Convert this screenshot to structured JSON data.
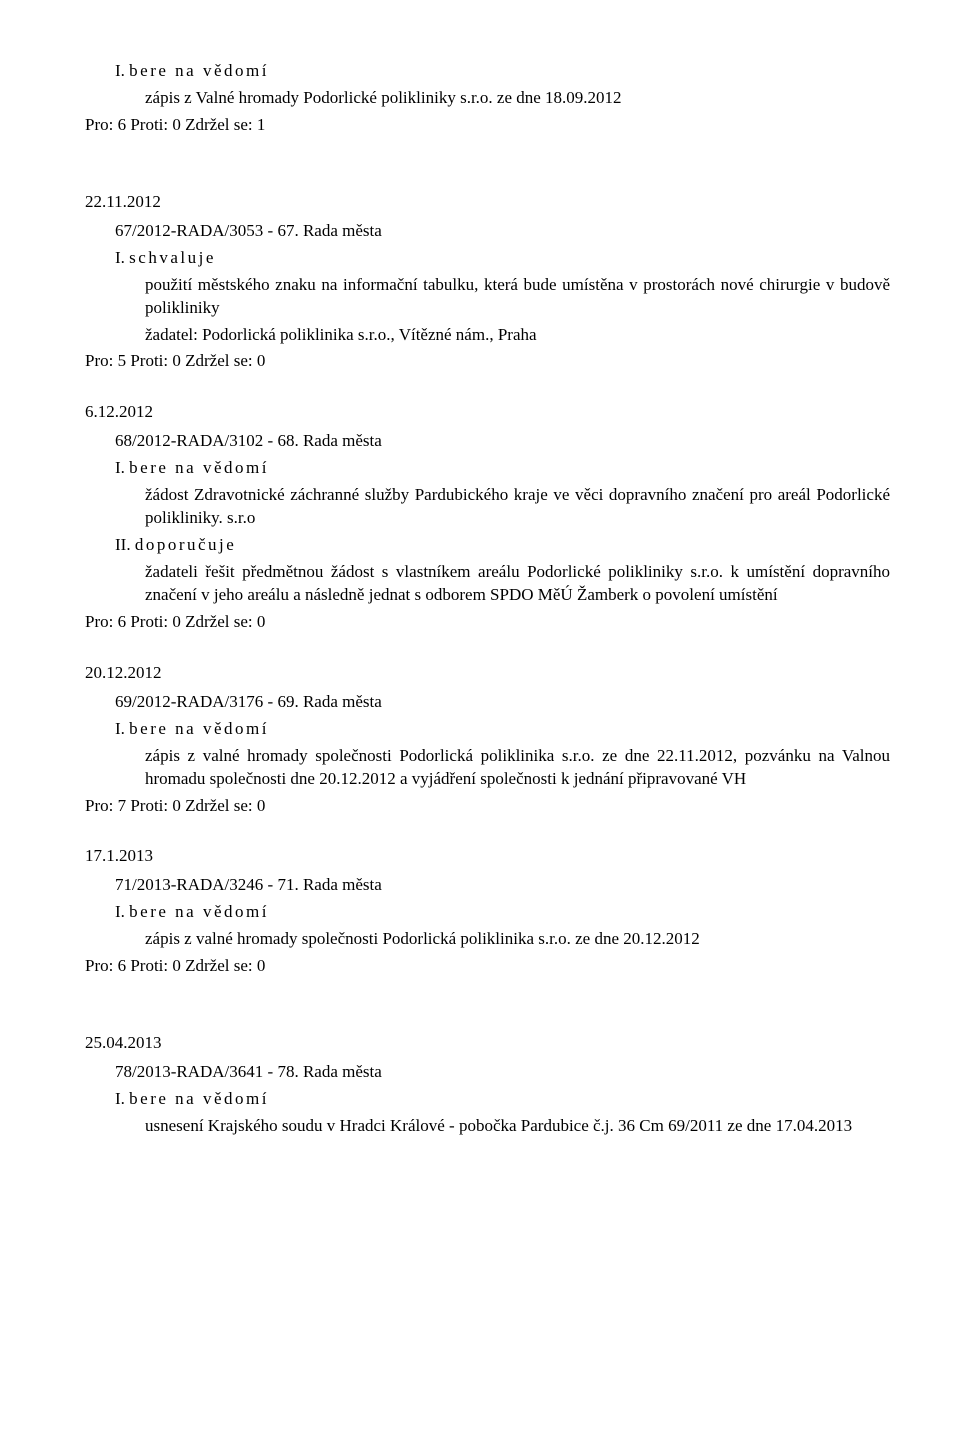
{
  "entries": [
    {
      "date": "",
      "ref": "",
      "sections": [
        {
          "roman": "I.",
          "verb": "bere na vědomí",
          "body": "zápis z Valné hromady Podorlické polikliniky s.r.o. ze dne 18.09.2012"
        }
      ],
      "vote": "Pro: 6  Proti: 0   Zdržel se: 1"
    },
    {
      "date": "22.11.2012",
      "ref": "67/2012-RADA/3053 - 67. Rada města",
      "sections": [
        {
          "roman": "I.",
          "verb": "schvaluje",
          "body": "použití městského znaku na informační tabulku, která bude umístěna v prostorách nové chirurgie v budově polikliniky"
        },
        {
          "roman": "",
          "verb": "",
          "body": "žadatel: Podorlická poliklinika s.r.o., Vítězné nám., Praha"
        }
      ],
      "vote": "Pro: 5  Proti: 0   Zdržel se: 0"
    },
    {
      "date": "6.12.2012",
      "ref": "68/2012-RADA/3102 - 68. Rada města",
      "sections": [
        {
          "roman": "I.",
          "verb": "bere na vědomí",
          "body": "žádost Zdravotnické záchranné služby Pardubického kraje ve věci dopravního značení pro areál Podorlické polikliniky. s.r.o"
        },
        {
          "roman": "II.",
          "verb": "doporučuje",
          "body": "žadateli řešit předmětnou žádost s vlastníkem areálu Podorlické polikliniky s.r.o. k umístění dopravního značení v jeho areálu a následně jednat s odborem SPDO MěÚ Žamberk o povolení umístění"
        }
      ],
      "vote": "Pro: 6  Proti: 0   Zdržel se: 0"
    },
    {
      "date": "20.12.2012",
      "ref": "69/2012-RADA/3176 - 69. Rada města",
      "sections": [
        {
          "roman": "I.",
          "verb": "bere na vědomí",
          "body": "zápis z valné hromady společnosti Podorlická poliklinika s.r.o. ze dne 22.11.2012, pozvánku na Valnou hromadu společnosti dne 20.12.2012 a vyjádření  společnosti k jednání připravované VH"
        }
      ],
      "vote": "Pro: 7  Proti: 0   Zdržel se: 0"
    },
    {
      "date": "17.1.2013",
      "ref": "71/2013-RADA/3246 - 71. Rada města",
      "sections": [
        {
          "roman": "I.",
          "verb": "bere na vědomí",
          "body": "zápis z valné hromady společnosti Podorlická poliklinika s.r.o. ze dne 20.12.2012"
        }
      ],
      "vote": "Pro: 6  Proti: 0   Zdržel se: 0"
    },
    {
      "date": "25.04.2013",
      "ref": "78/2013-RADA/3641 - 78. Rada města",
      "sections": [
        {
          "roman": "I.",
          "verb": "bere na vědomí",
          "body": "usnesení Krajského soudu v Hradci Králové - pobočka Pardubice č.j. 36 Cm 69/2011 ze dne 17.04.2013"
        }
      ],
      "vote": ""
    }
  ]
}
